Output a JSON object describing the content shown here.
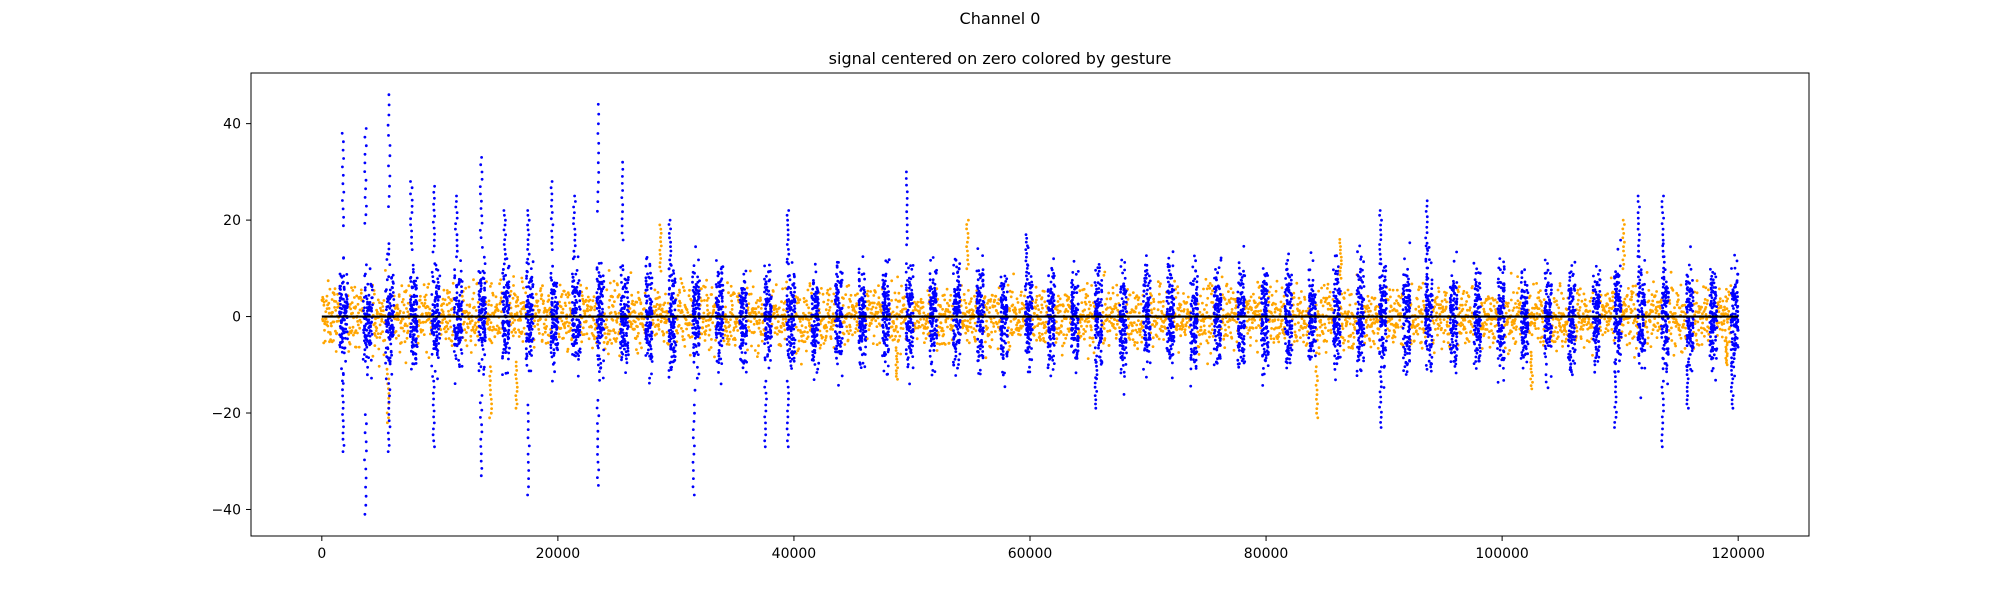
{
  "figure": {
    "suptitle": "Channel 0"
  },
  "chart_data": {
    "type": "scatter",
    "title": "signal centered on zero colored by gesture",
    "xlabel": "",
    "ylabel": "",
    "xlim": [
      -6000,
      126000
    ],
    "ylim": [
      -45.5,
      50.5
    ],
    "xticks": [
      0,
      20000,
      40000,
      60000,
      80000,
      100000,
      120000
    ],
    "yticks": [
      -40,
      -20,
      0,
      20,
      40
    ],
    "grid": false,
    "legend": "none",
    "colors": {
      "gesture_rest": "#ffa500",
      "gesture_active": "#0000ff",
      "baseline": "#000000"
    },
    "baseline": {
      "y": 0,
      "x_range": [
        0,
        120000
      ]
    },
    "series": [
      {
        "color": "#ffa500",
        "x_range": [
          0,
          120000
        ],
        "typical_amplitude": 6,
        "extreme_points": [
          {
            "x": 5600,
            "y": -22
          },
          {
            "x": 14300,
            "y": -21
          },
          {
            "x": 16500,
            "y": -19
          },
          {
            "x": 28700,
            "y": 19
          },
          {
            "x": 48700,
            "y": -13
          },
          {
            "x": 54700,
            "y": 20
          },
          {
            "x": 84300,
            "y": -21
          },
          {
            "x": 86300,
            "y": 16
          },
          {
            "x": 102500,
            "y": -15
          },
          {
            "x": 110300,
            "y": 20
          },
          {
            "x": 119000,
            "y": -10
          }
        ]
      },
      {
        "color": "#0000ff",
        "active_windows": [
          [
            1500,
            2200
          ],
          [
            3500,
            4300
          ],
          [
            5400,
            6100
          ],
          [
            7500,
            8100
          ],
          [
            9300,
            10000
          ],
          [
            11200,
            11900
          ],
          [
            13300,
            13900
          ],
          [
            15300,
            15900
          ],
          [
            17300,
            17900
          ],
          [
            19400,
            20000
          ],
          [
            21200,
            21900
          ],
          [
            23300,
            23900
          ],
          [
            25300,
            26000
          ],
          [
            27400,
            28000
          ],
          [
            29400,
            30000
          ],
          [
            31400,
            32000
          ],
          [
            33400,
            34000
          ],
          [
            35400,
            36000
          ],
          [
            37500,
            38100
          ],
          [
            39400,
            40100
          ],
          [
            41500,
            42100
          ],
          [
            43500,
            44100
          ],
          [
            45500,
            46100
          ],
          [
            47500,
            48100
          ],
          [
            49500,
            50100
          ],
          [
            51500,
            52100
          ],
          [
            53500,
            54100
          ],
          [
            55500,
            56100
          ],
          [
            57500,
            58100
          ],
          [
            59600,
            60200
          ],
          [
            61500,
            62100
          ],
          [
            63500,
            64100
          ],
          [
            65500,
            66100
          ],
          [
            67600,
            68200
          ],
          [
            69600,
            70200
          ],
          [
            71600,
            72200
          ],
          [
            73600,
            74200
          ],
          [
            75600,
            76200
          ],
          [
            77600,
            78200
          ],
          [
            79600,
            80200
          ],
          [
            81600,
            82200
          ],
          [
            83600,
            84200
          ],
          [
            85700,
            86300
          ],
          [
            87700,
            88300
          ],
          [
            89600,
            90200
          ],
          [
            91600,
            92200
          ],
          [
            93500,
            94100
          ],
          [
            95600,
            96200
          ],
          [
            97600,
            98200
          ],
          [
            99600,
            100200
          ],
          [
            101600,
            102200
          ],
          [
            103600,
            104200
          ],
          [
            105600,
            106200
          ],
          [
            107700,
            108300
          ],
          [
            109500,
            110100
          ],
          [
            111500,
            112100
          ],
          [
            113500,
            114100
          ],
          [
            115600,
            116200
          ],
          [
            117600,
            118200
          ],
          [
            119400,
            120000
          ]
        ],
        "typical_amplitude": 9,
        "extreme_points": [
          {
            "x": 1800,
            "y": 38
          },
          {
            "x": 1800,
            "y": -28
          },
          {
            "x": 3700,
            "y": 39
          },
          {
            "x": 3700,
            "y": -41
          },
          {
            "x": 5700,
            "y": 46
          },
          {
            "x": 5700,
            "y": -28
          },
          {
            "x": 7600,
            "y": 28
          },
          {
            "x": 9500,
            "y": 27
          },
          {
            "x": 9500,
            "y": -27
          },
          {
            "x": 11400,
            "y": 25
          },
          {
            "x": 13500,
            "y": 33
          },
          {
            "x": 13500,
            "y": -33
          },
          {
            "x": 15500,
            "y": 22
          },
          {
            "x": 17500,
            "y": 22
          },
          {
            "x": 17500,
            "y": -37
          },
          {
            "x": 19500,
            "y": 28
          },
          {
            "x": 21400,
            "y": 25
          },
          {
            "x": 23400,
            "y": 44
          },
          {
            "x": 23400,
            "y": -35
          },
          {
            "x": 25500,
            "y": 32
          },
          {
            "x": 29500,
            "y": 20
          },
          {
            "x": 31500,
            "y": -37
          },
          {
            "x": 37600,
            "y": -27
          },
          {
            "x": 39500,
            "y": 22
          },
          {
            "x": 39500,
            "y": -27
          },
          {
            "x": 49600,
            "y": 30
          },
          {
            "x": 59700,
            "y": 17
          },
          {
            "x": 65600,
            "y": -19
          },
          {
            "x": 89700,
            "y": 22
          },
          {
            "x": 89700,
            "y": -23
          },
          {
            "x": 93600,
            "y": 24
          },
          {
            "x": 109600,
            "y": -23
          },
          {
            "x": 111600,
            "y": 25
          },
          {
            "x": 113600,
            "y": 25
          },
          {
            "x": 113600,
            "y": -27
          },
          {
            "x": 115700,
            "y": -19
          },
          {
            "x": 119500,
            "y": -19
          }
        ]
      }
    ]
  }
}
